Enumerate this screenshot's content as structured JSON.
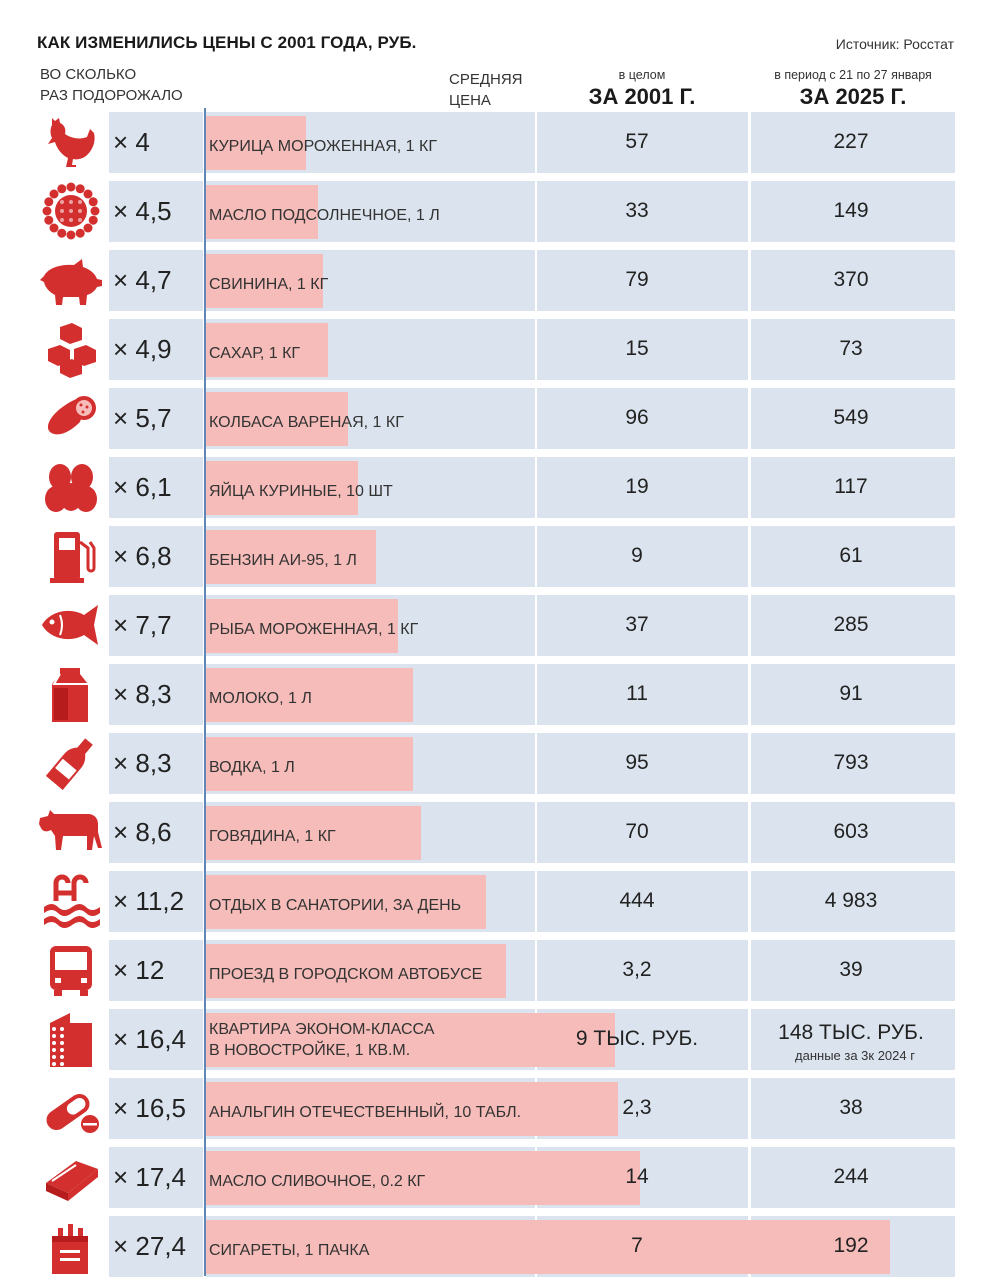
{
  "title": "КАК ИЗМЕНИЛИСЬ ЦЕНЫ С 2001 ГОДА, РУБ.",
  "source": "Источник: Росстат",
  "headers": {
    "times_line1": "ВО СКОЛЬКО",
    "times_line2": "РАЗ ПОДОРОЖАЛО",
    "avg_line1": "СРЕДНЯЯ",
    "avg_line2": "ЦЕНА",
    "col2001_top": "в целом",
    "col2001_big": "ЗА 2001 Г.",
    "col2025_top": "в период с 21 по 27 января",
    "col2025_big": "ЗА 2025 Г."
  },
  "colors": {
    "accent": "#d32f2f",
    "bar": "#f6bcb9",
    "row": "#dbe4ee",
    "axis": "#5f86b7"
  },
  "chart_data": {
    "type": "bar",
    "title": "КАК ИЗМЕНИЛИСЬ ЦЕНЫ С 2001 ГОДА, РУБ.",
    "value_label": "ВО СКОЛЬКО РАЗ ПОДОРОЖАЛО",
    "xlim": [
      0,
      30
    ],
    "rows": [
      {
        "icon": "chicken-icon",
        "mult": "× 4",
        "ratio": 4,
        "label": "КУРИЦА МОРОЖЕННАЯ, 1 КГ",
        "p2001": "57",
        "p2025": "227"
      },
      {
        "icon": "sunflower-icon",
        "mult": "× 4,5",
        "ratio": 4.5,
        "label": "МАСЛО ПОДСОЛНЕЧНОЕ, 1 Л",
        "p2001": "33",
        "p2025": "149"
      },
      {
        "icon": "pig-icon",
        "mult": "× 4,7",
        "ratio": 4.7,
        "label": "СВИНИНА, 1 КГ",
        "p2001": "79",
        "p2025": "370"
      },
      {
        "icon": "sugar-cubes-icon",
        "mult": "× 4,9",
        "ratio": 4.9,
        "label": "САХАР, 1 КГ",
        "p2001": "15",
        "p2025": "73"
      },
      {
        "icon": "sausage-icon",
        "mult": "× 5,7",
        "ratio": 5.7,
        "label": "КОЛБАСА ВАРЕНАЯ, 1 КГ",
        "p2001": "96",
        "p2025": "549"
      },
      {
        "icon": "eggs-icon",
        "mult": "× 6,1",
        "ratio": 6.1,
        "label": "ЯЙЦА КУРИНЫЕ, 10 ШТ",
        "p2001": "19",
        "p2025": "117"
      },
      {
        "icon": "fuel-pump-icon",
        "mult": "× 6,8",
        "ratio": 6.8,
        "label": "БЕНЗИН АИ-95, 1 Л",
        "p2001": "9",
        "p2025": "61"
      },
      {
        "icon": "fish-icon",
        "mult": "× 7,7",
        "ratio": 7.7,
        "label": "РЫБА МОРОЖЕННАЯ, 1 КГ",
        "p2001": "37",
        "p2025": "285"
      },
      {
        "icon": "milk-carton-icon",
        "mult": "× 8,3",
        "ratio": 8.3,
        "label": "МОЛОКО, 1 Л",
        "p2001": "11",
        "p2025": "91"
      },
      {
        "icon": "bottle-icon",
        "mult": "× 8,3",
        "ratio": 8.3,
        "label": "ВОДКА, 1 Л",
        "p2001": "95",
        "p2025": "793"
      },
      {
        "icon": "cow-icon",
        "mult": "× 8,6",
        "ratio": 8.6,
        "label": "ГОВЯДИНА, 1 КГ",
        "p2001": "70",
        "p2025": "603"
      },
      {
        "icon": "pool-icon",
        "mult": "× 11,2",
        "ratio": 11.2,
        "label": "ОТДЫХ В САНАТОРИИ, ЗА ДЕНЬ",
        "p2001": "444",
        "p2025": "4 983"
      },
      {
        "icon": "bus-icon",
        "mult": "× 12",
        "ratio": 12,
        "label": "ПРОЕЗД В ГОРОДСКОМ АВТОБУСЕ",
        "p2001": "3,2",
        "p2025": "39"
      },
      {
        "icon": "building-icon",
        "mult": "× 16,4",
        "ratio": 16.4,
        "label": "КВАРТИРА ЭКОНОМ-КЛАССА",
        "label2": "В НОВОСТРОЙКЕ, 1 КВ.М.",
        "p2001": "9 ТЫС. РУБ.",
        "p2025": "148 ТЫС. РУБ.",
        "note": "данные за 3к 2024 г"
      },
      {
        "icon": "pill-icon",
        "mult": "× 16,5",
        "ratio": 16.5,
        "label": "АНАЛЬГИН ОТЕЧЕСТВЕННЫЙ, 10 ТАБЛ.",
        "p2001": "2,3",
        "p2025": "38"
      },
      {
        "icon": "butter-icon",
        "mult": "× 17,4",
        "ratio": 17.4,
        "label": "МАСЛО СЛИВОЧНОЕ, 0.2 КГ",
        "p2001": "14",
        "p2025": "244"
      },
      {
        "icon": "cigarettes-icon",
        "mult": "× 27,4",
        "ratio": 27.4,
        "label": "СИГАРЕТЫ, 1 ПАЧКА",
        "p2001": "7",
        "p2025": "192"
      }
    ]
  }
}
